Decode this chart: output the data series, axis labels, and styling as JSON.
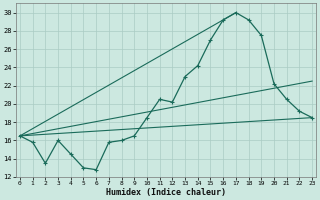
{
  "title": "",
  "xlabel": "Humidex (Indice chaleur)",
  "ylabel": "",
  "bg_color": "#cce8e0",
  "grid_color": "#aaccc4",
  "line_color": "#1a6b5a",
  "xlim": [
    -0.3,
    23.3
  ],
  "ylim": [
    12,
    31
  ],
  "yticks": [
    12,
    14,
    16,
    18,
    20,
    22,
    24,
    26,
    28,
    30
  ],
  "xticks": [
    0,
    1,
    2,
    3,
    4,
    5,
    6,
    7,
    8,
    9,
    10,
    11,
    12,
    13,
    14,
    15,
    16,
    17,
    18,
    19,
    20,
    21,
    22,
    23
  ],
  "curve_x": [
    0,
    1,
    2,
    3,
    4,
    5,
    6,
    7,
    8,
    9,
    10,
    11,
    12,
    13,
    14,
    15,
    16,
    17,
    18,
    19,
    20,
    21,
    22,
    23
  ],
  "curve_y": [
    16.5,
    15.8,
    13.5,
    16.0,
    14.5,
    13.0,
    12.8,
    15.8,
    16.0,
    16.5,
    18.5,
    20.5,
    20.2,
    23.0,
    24.2,
    27.0,
    29.2,
    30.0,
    29.2,
    27.5,
    22.2,
    20.5,
    19.2,
    18.5
  ],
  "line1_x": [
    0,
    23
  ],
  "line1_y": [
    16.5,
    22.5
  ],
  "line2_x": [
    0,
    23
  ],
  "line2_y": [
    16.5,
    18.5
  ],
  "line3_x": [
    0,
    17
  ],
  "line3_y": [
    16.5,
    30.0
  ]
}
